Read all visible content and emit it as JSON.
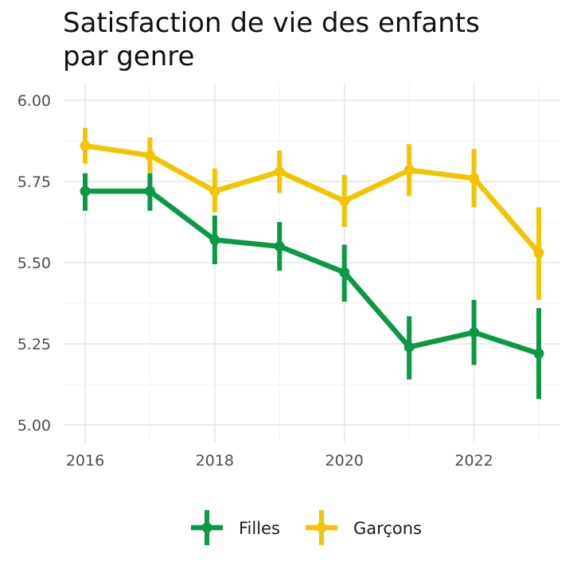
{
  "chart_data": {
    "type": "line",
    "title_lines": [
      "Satisfaction de vie des enfants",
      "par genre"
    ],
    "x": [
      2016,
      2017,
      2018,
      2019,
      2020,
      2021,
      2022,
      2023
    ],
    "xlim": [
      2016,
      2023
    ],
    "x_ticks": [
      2016,
      2018,
      2020,
      2022
    ],
    "x_tick_labels": [
      "2016",
      "2018",
      "2020",
      "2022"
    ],
    "ylim": [
      5.0,
      6.0
    ],
    "y_ticks": [
      5.0,
      5.25,
      5.5,
      5.75,
      6.0
    ],
    "y_tick_labels": [
      "5.00",
      "5.25",
      "5.50",
      "5.75",
      "6.00"
    ],
    "grid": true,
    "xlabel": "",
    "ylabel": "",
    "legend_position": "bottom",
    "series": [
      {
        "name": "Filles",
        "color": "#0a9a44",
        "values": [
          5.72,
          5.72,
          5.57,
          5.55,
          5.47,
          5.24,
          5.285,
          5.22
        ],
        "lower": [
          5.66,
          5.66,
          5.495,
          5.475,
          5.38,
          5.14,
          5.185,
          5.08
        ],
        "upper": [
          5.775,
          5.775,
          5.645,
          5.625,
          5.555,
          5.335,
          5.385,
          5.36
        ]
      },
      {
        "name": "Garçons",
        "color": "#f2c500",
        "values": [
          5.86,
          5.83,
          5.72,
          5.78,
          5.69,
          5.785,
          5.76,
          5.53
        ],
        "lower": [
          5.805,
          5.775,
          5.655,
          5.715,
          5.61,
          5.705,
          5.67,
          5.385
        ],
        "upper": [
          5.915,
          5.885,
          5.79,
          5.845,
          5.77,
          5.865,
          5.85,
          5.67
        ]
      }
    ]
  }
}
